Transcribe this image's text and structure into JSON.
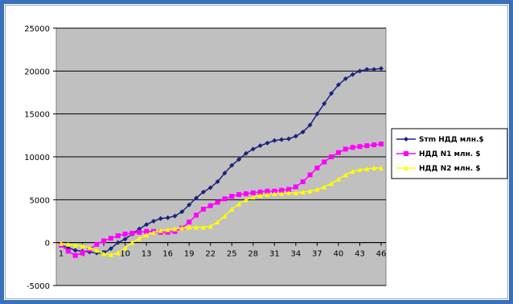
{
  "chart_data": {
    "type": "line",
    "title": "",
    "xlabel": "",
    "ylabel": "",
    "ylim": [
      -5000,
      25000
    ],
    "yticks": [
      -5000,
      0,
      5000,
      10000,
      15000,
      20000,
      25000
    ],
    "xticks": [
      1,
      4,
      7,
      10,
      13,
      16,
      19,
      22,
      25,
      28,
      31,
      34,
      37,
      40,
      43,
      46
    ],
    "x": [
      1,
      2,
      3,
      4,
      5,
      6,
      7,
      8,
      9,
      10,
      11,
      12,
      13,
      14,
      15,
      16,
      17,
      18,
      19,
      20,
      21,
      22,
      23,
      24,
      25,
      26,
      27,
      28,
      29,
      30,
      31,
      32,
      33,
      34,
      35,
      36,
      37,
      38,
      39,
      40,
      41,
      42,
      43,
      44,
      45,
      46
    ],
    "grid": "horizontal",
    "legend_position": "right",
    "plot_background": "#c0c0c0",
    "series": [
      {
        "name": "Sтm НДД млн.$",
        "color": "#1a237e",
        "marker": "diamond",
        "values": [
          -300,
          -600,
          -900,
          -1000,
          -1100,
          -1200,
          -1200,
          -700,
          0,
          400,
          1000,
          1600,
          2100,
          2500,
          2800,
          2900,
          3100,
          3600,
          4400,
          5200,
          5900,
          6400,
          7100,
          8100,
          9000,
          9700,
          10400,
          10900,
          11300,
          11600,
          11900,
          12000,
          12100,
          12400,
          12900,
          13700,
          15000,
          16200,
          17400,
          18400,
          19100,
          19600,
          20000,
          20200,
          20200,
          20300
        ]
      },
      {
        "name": "НДД N1 млн. $",
        "color": "#ff00ff",
        "marker": "square",
        "values": [
          -300,
          -1000,
          -1500,
          -1200,
          -800,
          -200,
          200,
          500,
          800,
          1000,
          1100,
          1200,
          1300,
          1300,
          1200,
          1200,
          1300,
          1700,
          2400,
          3200,
          3900,
          4300,
          4700,
          5100,
          5400,
          5600,
          5700,
          5800,
          5900,
          6000,
          6000,
          6100,
          6200,
          6500,
          7100,
          7900,
          8700,
          9400,
          10000,
          10500,
          10900,
          11100,
          11200,
          11300,
          11400,
          11500
        ]
      },
      {
        "name": "НДД N2 млн. $",
        "color": "#ffff00",
        "marker": "triangle",
        "values": [
          -100,
          -200,
          -300,
          -400,
          -600,
          -900,
          -1300,
          -1400,
          -1200,
          -600,
          0,
          500,
          900,
          1200,
          1400,
          1500,
          1600,
          1700,
          1800,
          1800,
          1800,
          1900,
          2400,
          3100,
          3900,
          4500,
          5000,
          5300,
          5500,
          5600,
          5700,
          5700,
          5800,
          5800,
          5900,
          6000,
          6200,
          6500,
          6900,
          7400,
          7900,
          8300,
          8500,
          8600,
          8700,
          8700
        ]
      }
    ]
  }
}
